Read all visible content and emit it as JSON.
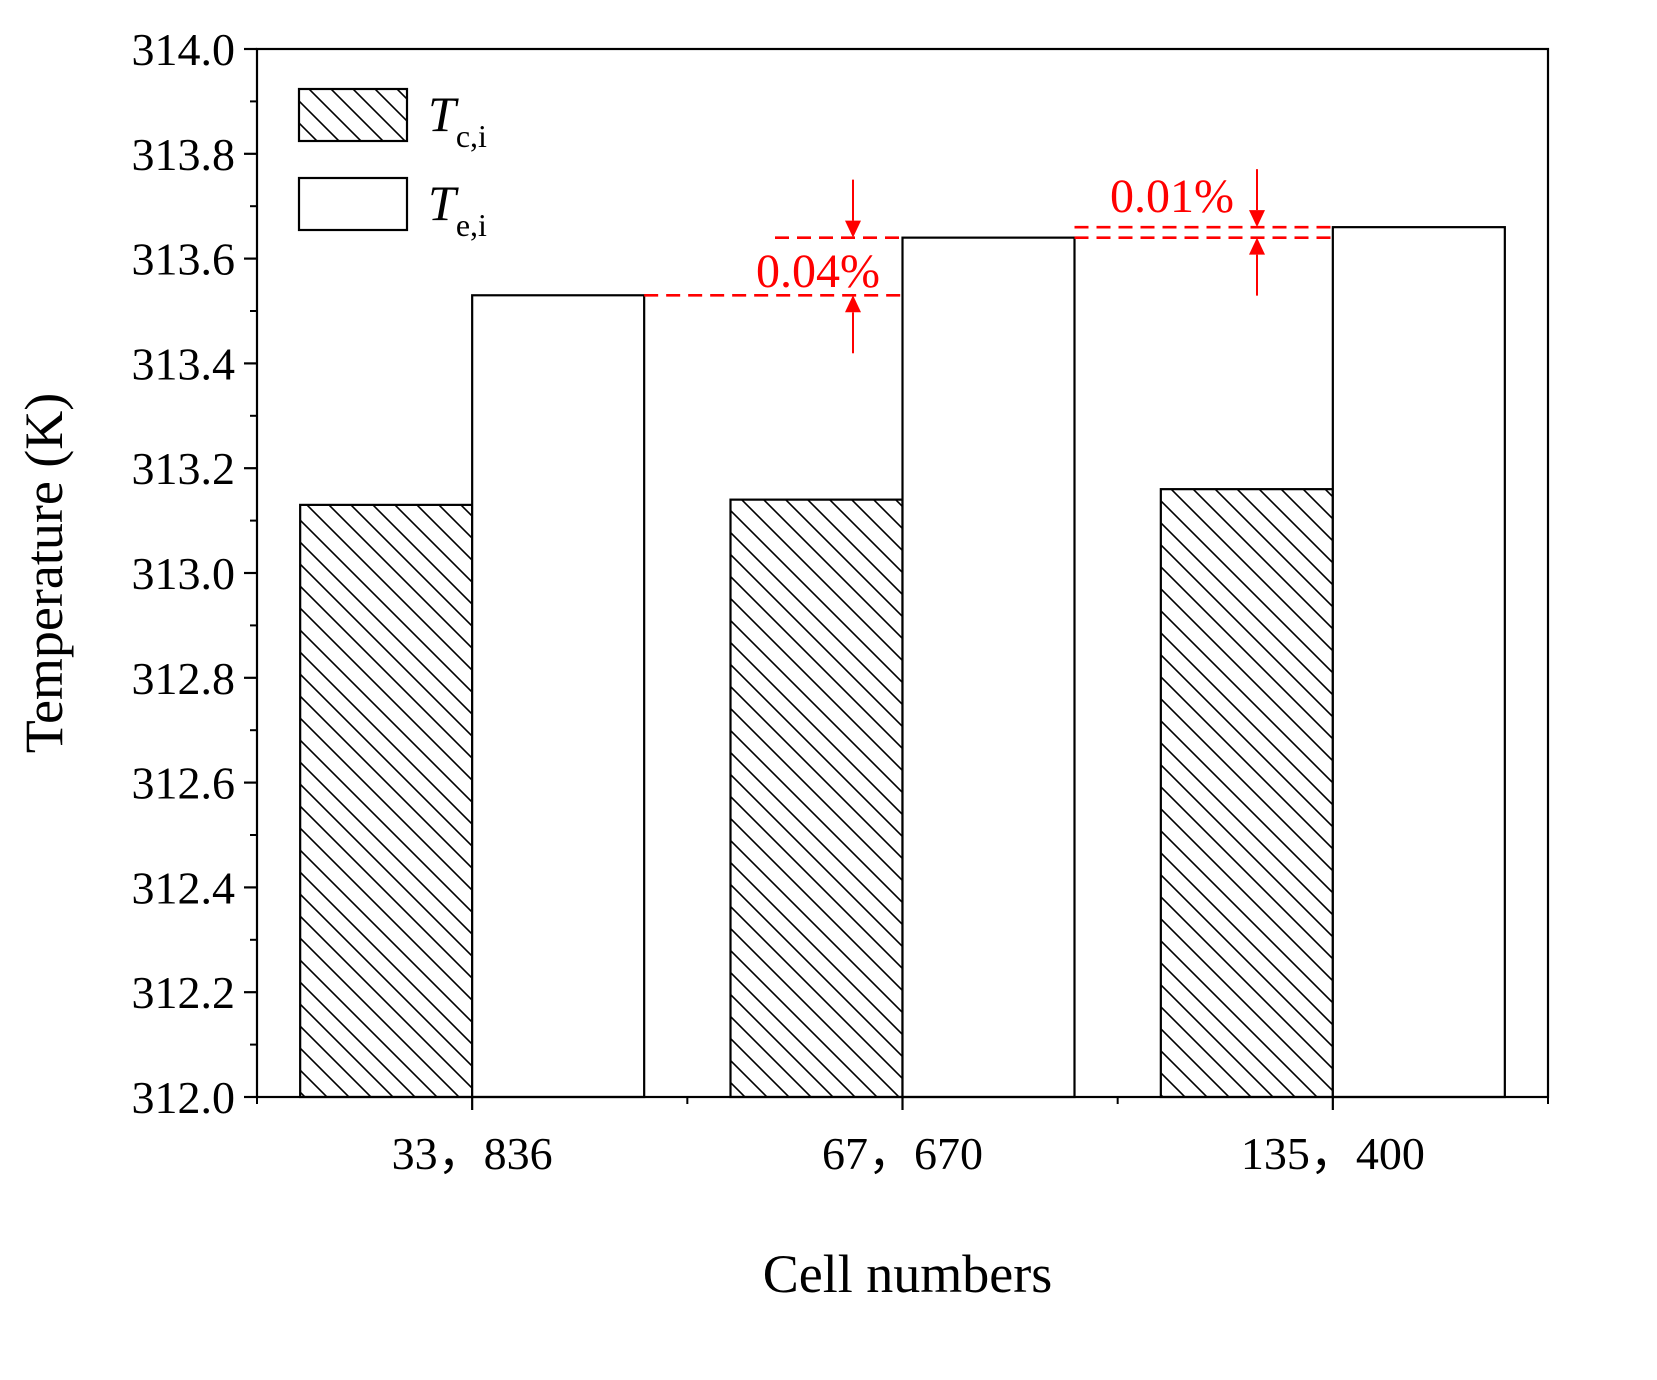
{
  "chart_data": {
    "type": "bar",
    "xlabel": "Cell numbers",
    "ylabel": "Temperature (K)",
    "ylim": [
      312.0,
      314.0
    ],
    "yticks": [
      "312.0",
      "312.2",
      "312.4",
      "312.6",
      "312.8",
      "313.0",
      "313.2",
      "313.4",
      "313.6",
      "313.8",
      "314.0"
    ],
    "categories": [
      "33，836",
      "67，670",
      "135，400"
    ],
    "grid": false,
    "legend_position": "top-left",
    "series": [
      {
        "name_main": "T",
        "name_sub": "c,i",
        "pattern": "hatched",
        "values": [
          313.13,
          313.14,
          313.16
        ]
      },
      {
        "name_main": "T",
        "name_sub": "e,i",
        "pattern": "white",
        "values": [
          313.53,
          313.64,
          313.66
        ]
      }
    ],
    "annotations": [
      {
        "text": "0.04%",
        "from_category": 0,
        "to_category": 1,
        "from_value": 313.53,
        "to_value": 313.64
      },
      {
        "text": "0.01%",
        "from_category": 1,
        "to_category": 2,
        "from_value": 313.64,
        "to_value": 313.66
      }
    ],
    "colors": {
      "axis": "#000000",
      "annotation": "#ff0000",
      "bar_fill": "#ffffff"
    }
  }
}
